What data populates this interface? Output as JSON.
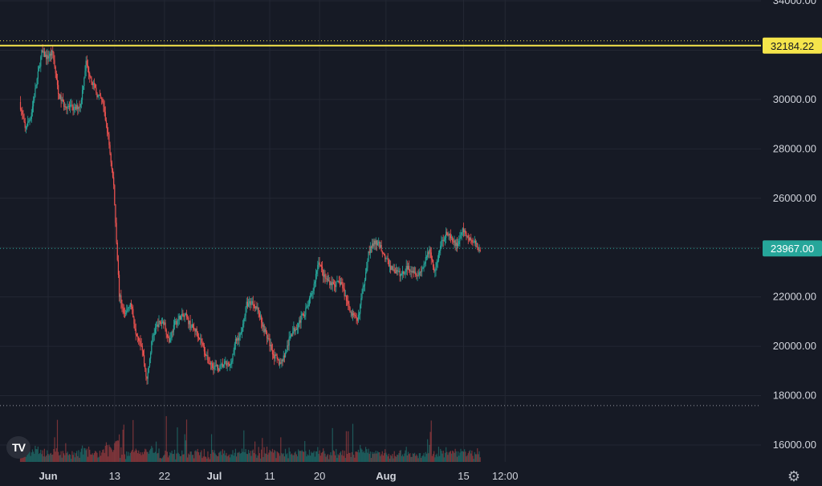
{
  "brand": {
    "logo_text": "TV",
    "logo_icon": "tradingview-logo-icon"
  },
  "toolbar": {
    "settings_icon": "gear-icon"
  },
  "colors": {
    "background": "#161a25",
    "grid": "#232733",
    "up": "#26a69a",
    "down": "#ef5350",
    "horizontal_line": "#f5e54b",
    "current_price_tag": "#26a69a"
  },
  "chart_data": {
    "type": "candlestick",
    "title": "",
    "y_axis": {
      "ticks": [
        "34000.00",
        "32000.00",
        "30000.00",
        "28000.00",
        "26000.00",
        "24000.00",
        "22000.00",
        "20000.00",
        "18000.00",
        "16000.00"
      ],
      "tick_values": [
        34000,
        32000,
        30000,
        28000,
        26000,
        24000,
        22000,
        20000,
        18000,
        16000
      ],
      "range": [
        15500,
        34000
      ]
    },
    "x_axis": {
      "ticks": [
        {
          "label": "Jun",
          "date": "2022-06-01",
          "bold": true
        },
        {
          "label": "13",
          "date": "2022-06-13"
        },
        {
          "label": "22",
          "date": "2022-06-22"
        },
        {
          "label": "Jul",
          "date": "2022-07-01",
          "bold": true
        },
        {
          "label": "11",
          "date": "2022-07-11"
        },
        {
          "label": "20",
          "date": "2022-07-20"
        },
        {
          "label": "Aug",
          "date": "2022-08-01",
          "bold": true
        },
        {
          "label": "15",
          "date": "2022-08-15"
        },
        {
          "label": "12:00",
          "date": "2022-08-22T12:00"
        }
      ],
      "range": [
        "2022-05-27",
        "2022-08-27"
      ]
    },
    "horizontal_lines": [
      {
        "price": 32184.22,
        "label": "32184.22",
        "style": "solid",
        "color": "#f5e54b"
      },
      {
        "price": 32184.22,
        "style": "dotted",
        "color": "#f5e54b"
      },
      {
        "price": 17600,
        "style": "dotted",
        "color": "#9598a1"
      }
    ],
    "current_price": {
      "price": 23967.0,
      "label": "23967.00",
      "color": "#26a69a"
    },
    "price_path": [
      [
        "2022-05-27",
        29900
      ],
      [
        "2022-05-28",
        28800
      ],
      [
        "2022-05-29",
        29300
      ],
      [
        "2022-05-30",
        30600
      ],
      [
        "2022-05-31",
        31900
      ],
      [
        "2022-06-01",
        31700
      ],
      [
        "2022-06-02",
        31900
      ],
      [
        "2022-06-03",
        30200
      ],
      [
        "2022-06-04",
        29800
      ],
      [
        "2022-06-05",
        29700
      ],
      [
        "2022-06-06",
        29600
      ],
      [
        "2022-06-07",
        29800
      ],
      [
        "2022-06-08",
        31500
      ],
      [
        "2022-06-09",
        30800
      ],
      [
        "2022-06-10",
        30200
      ],
      [
        "2022-06-11",
        29900
      ],
      [
        "2022-06-12",
        28500
      ],
      [
        "2022-06-13",
        26500
      ],
      [
        "2022-06-14",
        22100
      ],
      [
        "2022-06-15",
        21200
      ],
      [
        "2022-06-16",
        21800
      ],
      [
        "2022-06-17",
        20600
      ],
      [
        "2022-06-18",
        20100
      ],
      [
        "2022-06-19",
        18600
      ],
      [
        "2022-06-20",
        20400
      ],
      [
        "2022-06-21",
        20900
      ],
      [
        "2022-06-22",
        21000
      ],
      [
        "2022-06-23",
        20200
      ],
      [
        "2022-06-24",
        20900
      ],
      [
        "2022-06-25",
        21200
      ],
      [
        "2022-06-26",
        21200
      ],
      [
        "2022-06-27",
        20800
      ],
      [
        "2022-06-28",
        20600
      ],
      [
        "2022-06-29",
        20100
      ],
      [
        "2022-06-30",
        19400
      ],
      [
        "2022-07-01",
        19200
      ],
      [
        "2022-07-02",
        19100
      ],
      [
        "2022-07-03",
        19300
      ],
      [
        "2022-07-04",
        19200
      ],
      [
        "2022-07-05",
        20200
      ],
      [
        "2022-07-06",
        20500
      ],
      [
        "2022-07-07",
        21700
      ],
      [
        "2022-07-08",
        21800
      ],
      [
        "2022-07-09",
        21500
      ],
      [
        "2022-07-10",
        20800
      ],
      [
        "2022-07-11",
        20200
      ],
      [
        "2022-07-12",
        19600
      ],
      [
        "2022-07-13",
        19300
      ],
      [
        "2022-07-14",
        19700
      ],
      [
        "2022-07-15",
        20500
      ],
      [
        "2022-07-16",
        20800
      ],
      [
        "2022-07-17",
        21200
      ],
      [
        "2022-07-18",
        21600
      ],
      [
        "2022-07-19",
        22300
      ],
      [
        "2022-07-20",
        23500
      ],
      [
        "2022-07-21",
        22800
      ],
      [
        "2022-07-22",
        22600
      ],
      [
        "2022-07-23",
        22500
      ],
      [
        "2022-07-24",
        22600
      ],
      [
        "2022-07-25",
        21900
      ],
      [
        "2022-07-26",
        21300
      ],
      [
        "2022-07-27",
        21000
      ],
      [
        "2022-07-28",
        22300
      ],
      [
        "2022-07-29",
        23800
      ],
      [
        "2022-07-30",
        24200
      ],
      [
        "2022-07-31",
        24100
      ],
      [
        "2022-08-01",
        23600
      ],
      [
        "2022-08-02",
        23200
      ],
      [
        "2022-08-03",
        23000
      ],
      [
        "2022-08-04",
        22900
      ],
      [
        "2022-08-05",
        23200
      ],
      [
        "2022-08-06",
        23100
      ],
      [
        "2022-08-07",
        22900
      ],
      [
        "2022-08-08",
        23300
      ],
      [
        "2022-08-09",
        23900
      ],
      [
        "2022-08-10",
        23000
      ],
      [
        "2022-08-11",
        24100
      ],
      [
        "2022-08-12",
        24600
      ],
      [
        "2022-08-13",
        24300
      ],
      [
        "2022-08-14",
        24100
      ],
      [
        "2022-08-15",
        24700
      ],
      [
        "2022-08-16",
        24400
      ],
      [
        "2022-08-17",
        24200
      ],
      [
        "2022-08-18",
        23967
      ]
    ]
  }
}
